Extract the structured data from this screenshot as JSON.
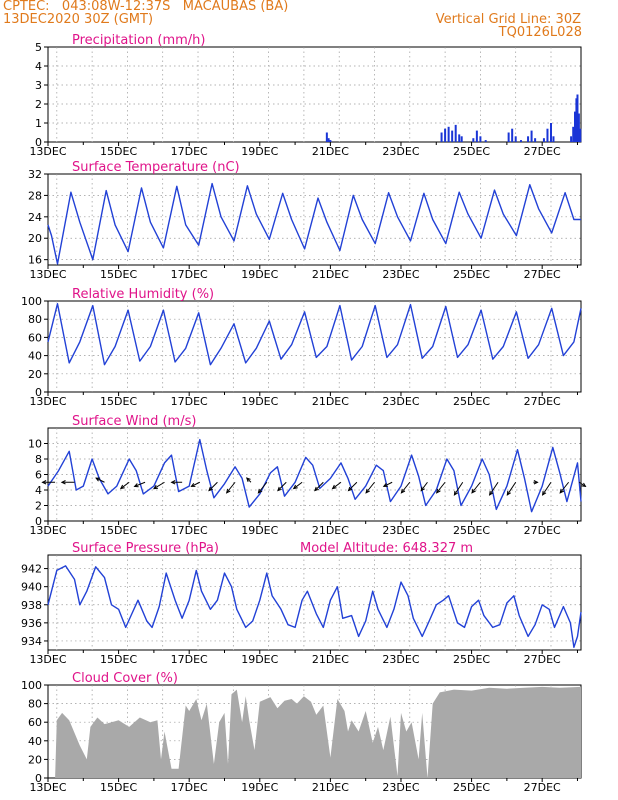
{
  "header": {
    "line1": "CPTEC:   043:08W-12:37S   MACAUBAS (BA)",
    "line2": "13DEC2020 30Z (GMT)",
    "vgrid": "Vertical Grid Line: 30Z",
    "code": "TQ0126L028"
  },
  "colors": {
    "header": "#e07a1c",
    "title": "#e0148a",
    "line": "#2241d6",
    "precip_bar": "#1a35d6",
    "cloud": "#a9a9a9",
    "arrow": "#000000",
    "grid": "#9a9a9a"
  },
  "x_axis": {
    "labels": [
      "13DEC",
      "15DEC",
      "17DEC",
      "19DEC",
      "21DEC",
      "23DEC",
      "25DEC",
      "27DEC"
    ],
    "start_day": 13,
    "end_day": 28.1
  },
  "chart_data": [
    {
      "id": "precip",
      "type": "bar",
      "title": "Precipitation (mm/h)",
      "ylim": [
        0,
        5
      ],
      "yticks": [
        0,
        1,
        2,
        3,
        4,
        5
      ],
      "x_unit": "day of December 2020",
      "points": [
        [
          20.9,
          0.5
        ],
        [
          20.95,
          0.2
        ],
        [
          21.0,
          0.1
        ],
        [
          24.15,
          0.5
        ],
        [
          24.25,
          0.7
        ],
        [
          24.35,
          0.8
        ],
        [
          24.45,
          0.6
        ],
        [
          24.55,
          0.9
        ],
        [
          24.65,
          0.4
        ],
        [
          24.72,
          0.3
        ],
        [
          25.05,
          0.2
        ],
        [
          25.15,
          0.6
        ],
        [
          25.25,
          0.3
        ],
        [
          25.4,
          0.1
        ],
        [
          26.05,
          0.5
        ],
        [
          26.15,
          0.7
        ],
        [
          26.25,
          0.3
        ],
        [
          26.4,
          0.1
        ],
        [
          26.6,
          0.3
        ],
        [
          26.7,
          0.6
        ],
        [
          26.8,
          0.2
        ],
        [
          27.05,
          0.2
        ],
        [
          27.15,
          0.7
        ],
        [
          27.25,
          1.0
        ],
        [
          27.32,
          0.3
        ],
        [
          27.82,
          0.3
        ],
        [
          27.88,
          0.8
        ],
        [
          27.93,
          1.6
        ],
        [
          27.97,
          2.3
        ],
        [
          28.0,
          2.5
        ],
        [
          28.04,
          1.5
        ],
        [
          28.08,
          0.7
        ]
      ]
    },
    {
      "id": "temp",
      "type": "line",
      "title": "Surface Temperature (nC)",
      "ylim": [
        15,
        32
      ],
      "yticks": [
        16,
        20,
        24,
        28,
        32
      ],
      "x": [
        13.0,
        13.1,
        13.27,
        13.65,
        13.9,
        14.27,
        14.65,
        14.9,
        15.27,
        15.65,
        15.9,
        16.27,
        16.65,
        16.9,
        17.27,
        17.65,
        17.9,
        18.27,
        18.65,
        18.9,
        19.27,
        19.65,
        19.9,
        20.27,
        20.65,
        20.9,
        21.27,
        21.65,
        21.9,
        22.27,
        22.65,
        22.9,
        23.27,
        23.65,
        23.9,
        24.27,
        24.65,
        24.9,
        25.27,
        25.65,
        25.9,
        26.27,
        26.65,
        26.9,
        27.27,
        27.65,
        27.9,
        28.1
      ],
      "y": [
        22.5,
        20.5,
        15.2,
        28.6,
        23.0,
        16.0,
        28.9,
        22.5,
        17.5,
        29.4,
        23.0,
        18.2,
        29.7,
        22.5,
        18.7,
        30.2,
        24.0,
        19.5,
        29.8,
        24.5,
        19.8,
        28.4,
        23.5,
        18.0,
        27.5,
        23.0,
        17.7,
        28.0,
        23.5,
        19.0,
        28.5,
        24.0,
        19.5,
        28.4,
        23.5,
        19.0,
        28.6,
        24.5,
        20.0,
        29.0,
        24.5,
        20.5,
        30.0,
        25.5,
        21.0,
        28.5,
        23.5,
        23.5
      ]
    },
    {
      "id": "rh",
      "type": "line",
      "title": "Relative Humidity (%)",
      "ylim": [
        0,
        100
      ],
      "yticks": [
        0,
        20,
        40,
        60,
        80,
        100
      ],
      "x": [
        13.0,
        13.27,
        13.6,
        13.9,
        14.27,
        14.6,
        14.9,
        15.27,
        15.6,
        15.9,
        16.27,
        16.6,
        16.9,
        17.27,
        17.6,
        17.9,
        18.27,
        18.6,
        18.9,
        19.27,
        19.6,
        19.9,
        20.27,
        20.6,
        20.9,
        21.27,
        21.6,
        21.9,
        22.27,
        22.6,
        22.9,
        23.27,
        23.6,
        23.9,
        24.27,
        24.6,
        24.9,
        25.27,
        25.6,
        25.9,
        26.27,
        26.6,
        26.9,
        27.27,
        27.6,
        27.9,
        28.1
      ],
      "y": [
        55,
        97,
        32,
        55,
        95,
        30,
        50,
        90,
        34,
        50,
        90,
        33,
        48,
        87,
        30,
        48,
        75,
        32,
        48,
        78,
        36,
        52,
        88,
        38,
        50,
        95,
        35,
        50,
        95,
        38,
        52,
        96,
        37,
        50,
        94,
        38,
        52,
        90,
        36,
        50,
        88,
        37,
        52,
        92,
        40,
        55,
        92
      ]
    },
    {
      "id": "wind",
      "type": "line",
      "title": "Surface Wind (m/s)",
      "ylim": [
        0,
        12
      ],
      "yticks": [
        0,
        2,
        4,
        6,
        8,
        10
      ],
      "x": [
        13.0,
        13.3,
        13.6,
        13.8,
        14.0,
        14.25,
        14.45,
        14.7,
        14.95,
        15.3,
        15.5,
        15.7,
        16.0,
        16.3,
        16.5,
        16.7,
        17.0,
        17.3,
        17.5,
        17.7,
        18.0,
        18.3,
        18.5,
        18.7,
        19.0,
        19.3,
        19.5,
        19.7,
        20.0,
        20.3,
        20.5,
        20.7,
        21.0,
        21.3,
        21.5,
        21.7,
        22.0,
        22.3,
        22.5,
        22.7,
        23.0,
        23.3,
        23.5,
        23.7,
        24.0,
        24.3,
        24.5,
        24.7,
        25.0,
        25.3,
        25.5,
        25.7,
        26.0,
        26.3,
        26.5,
        26.7,
        27.0,
        27.3,
        27.5,
        27.7,
        28.0,
        28.1
      ],
      "y": [
        4.5,
        6.5,
        9.0,
        4.0,
        4.5,
        8.0,
        5.5,
        3.5,
        4.5,
        8.0,
        6.5,
        3.5,
        4.5,
        7.5,
        8.5,
        3.8,
        4.5,
        10.5,
        6.5,
        3.0,
        4.8,
        7.0,
        5.5,
        1.8,
        3.5,
        6.2,
        7.0,
        3.2,
        5.0,
        8.2,
        7.2,
        4.2,
        5.5,
        7.5,
        5.5,
        2.8,
        4.5,
        7.2,
        6.5,
        2.5,
        4.5,
        8.5,
        5.8,
        2.0,
        4.0,
        8.0,
        6.5,
        2.0,
        4.5,
        8.0,
        6.0,
        1.5,
        4.5,
        9.2,
        5.5,
        1.2,
        4.5,
        9.5,
        6.2,
        2.5,
        7.5,
        2.5
      ],
      "arrows": [
        {
          "x": 13.2,
          "u": -3,
          "v": 0
        },
        {
          "x": 13.75,
          "u": -3,
          "v": 0
        },
        {
          "x": 14.6,
          "u": -2,
          "v": 1
        },
        {
          "x": 15.3,
          "u": -2,
          "v": -1.5
        },
        {
          "x": 15.75,
          "u": -2.5,
          "v": -1
        },
        {
          "x": 16.3,
          "u": -2.5,
          "v": -1.5
        },
        {
          "x": 16.8,
          "u": -2.5,
          "v": 0
        },
        {
          "x": 17.3,
          "u": -2,
          "v": -1
        },
        {
          "x": 17.8,
          "u": -2,
          "v": -2
        },
        {
          "x": 18.3,
          "u": -2,
          "v": -2.5
        },
        {
          "x": 18.75,
          "u": -1,
          "v": 1
        },
        {
          "x": 19.2,
          "u": -2,
          "v": -2.5
        },
        {
          "x": 19.75,
          "u": -2,
          "v": -2
        },
        {
          "x": 20.2,
          "u": -2,
          "v": -1.5
        },
        {
          "x": 20.8,
          "u": -2,
          "v": -2
        },
        {
          "x": 21.3,
          "u": -2,
          "v": -1.5
        },
        {
          "x": 21.75,
          "u": -2,
          "v": -2
        },
        {
          "x": 22.25,
          "u": -2,
          "v": -2.5
        },
        {
          "x": 22.75,
          "u": -2,
          "v": -1
        },
        {
          "x": 23.25,
          "u": -2,
          "v": -2.5
        },
        {
          "x": 23.75,
          "u": -1.5,
          "v": -2
        },
        {
          "x": 24.25,
          "u": -2,
          "v": -2.5
        },
        {
          "x": 24.75,
          "u": -2,
          "v": -3
        },
        {
          "x": 25.25,
          "u": -2,
          "v": -2.5
        },
        {
          "x": 25.75,
          "u": -2,
          "v": -3
        },
        {
          "x": 26.25,
          "u": -2,
          "v": -3
        },
        {
          "x": 26.75,
          "u": 1,
          "v": 0
        },
        {
          "x": 27.25,
          "u": -2,
          "v": -3
        },
        {
          "x": 27.75,
          "u": -2,
          "v": -2.5
        },
        {
          "x": 28.05,
          "u": 1.5,
          "v": -1
        }
      ]
    },
    {
      "id": "pres",
      "type": "line",
      "title": "Surface Pressure (hPa)",
      "annotation": "Model Altitude: 648.327 m",
      "ylim": [
        933,
        943.5
      ],
      "yticks": [
        934,
        936,
        938,
        940,
        942
      ],
      "x": [
        13.0,
        13.25,
        13.5,
        13.75,
        13.9,
        14.1,
        14.35,
        14.6,
        14.8,
        15.0,
        15.2,
        15.35,
        15.55,
        15.8,
        15.95,
        16.15,
        16.35,
        16.6,
        16.8,
        17.0,
        17.2,
        17.35,
        17.6,
        17.8,
        18.0,
        18.2,
        18.35,
        18.6,
        18.8,
        19.0,
        19.2,
        19.35,
        19.6,
        19.8,
        20.0,
        20.2,
        20.35,
        20.6,
        20.8,
        21.0,
        21.2,
        21.35,
        21.6,
        21.8,
        22.0,
        22.2,
        22.35,
        22.6,
        22.8,
        23.0,
        23.2,
        23.35,
        23.6,
        23.8,
        24.0,
        24.2,
        24.35,
        24.6,
        24.8,
        25.0,
        25.2,
        25.35,
        25.6,
        25.8,
        26.0,
        26.2,
        26.35,
        26.6,
        26.8,
        27.0,
        27.2,
        27.35,
        27.6,
        27.8,
        27.9,
        28.0,
        28.1
      ],
      "y": [
        938.0,
        941.8,
        942.3,
        940.8,
        938.0,
        939.5,
        942.2,
        941.0,
        938.0,
        937.5,
        935.5,
        936.8,
        938.5,
        936.2,
        935.5,
        937.8,
        941.5,
        938.5,
        936.5,
        938.5,
        941.8,
        939.5,
        937.5,
        938.5,
        941.5,
        940.0,
        937.5,
        935.5,
        936.2,
        938.5,
        941.5,
        939.0,
        937.5,
        935.8,
        935.5,
        938.5,
        939.5,
        937.0,
        935.5,
        938.5,
        940.0,
        936.5,
        936.8,
        934.5,
        936.2,
        939.5,
        937.5,
        935.5,
        937.5,
        940.5,
        939.0,
        936.5,
        934.5,
        936.2,
        938.0,
        938.5,
        939.0,
        936.0,
        935.5,
        937.8,
        938.5,
        936.8,
        935.5,
        935.8,
        938.2,
        939.0,
        936.8,
        934.5,
        935.8,
        938.0,
        937.5,
        935.5,
        937.8,
        936.0,
        933.3,
        934.5,
        937.2
      ]
    },
    {
      "id": "cloud",
      "type": "area",
      "title": "Cloud Cover (%)",
      "ylim": [
        0,
        100
      ],
      "yticks": [
        0,
        20,
        40,
        60,
        80,
        100
      ],
      "x": [
        13.0,
        13.2,
        13.25,
        13.4,
        13.6,
        13.9,
        14.1,
        14.2,
        14.4,
        14.6,
        14.8,
        15.0,
        15.3,
        15.6,
        15.9,
        16.1,
        16.2,
        16.3,
        16.5,
        16.7,
        16.9,
        17.0,
        17.2,
        17.35,
        17.5,
        17.7,
        17.85,
        18.0,
        18.1,
        18.2,
        18.35,
        18.5,
        18.6,
        18.7,
        18.85,
        19.0,
        19.3,
        19.5,
        19.7,
        19.9,
        20.05,
        20.25,
        20.45,
        20.6,
        20.8,
        21.0,
        21.2,
        21.4,
        21.5,
        21.6,
        21.8,
        22.0,
        22.2,
        22.35,
        22.5,
        22.7,
        22.9,
        23.0,
        23.15,
        23.3,
        23.5,
        23.6,
        23.75,
        23.9,
        24.1,
        24.5,
        25.0,
        25.5,
        26.0,
        26.5,
        27.0,
        27.5,
        28.1
      ],
      "y": [
        0,
        0,
        62,
        70,
        62,
        35,
        20,
        55,
        65,
        58,
        60,
        62,
        55,
        65,
        60,
        62,
        20,
        50,
        10,
        10,
        78,
        72,
        85,
        62,
        80,
        15,
        60,
        70,
        15,
        90,
        95,
        60,
        88,
        62,
        30,
        82,
        87,
        75,
        83,
        85,
        80,
        88,
        82,
        68,
        78,
        22,
        85,
        72,
        50,
        62,
        50,
        72,
        38,
        55,
        30,
        66,
        2,
        70,
        50,
        60,
        20,
        70,
        0,
        80,
        92,
        95,
        94,
        97,
        96,
        97,
        98,
        97,
        98
      ]
    }
  ]
}
